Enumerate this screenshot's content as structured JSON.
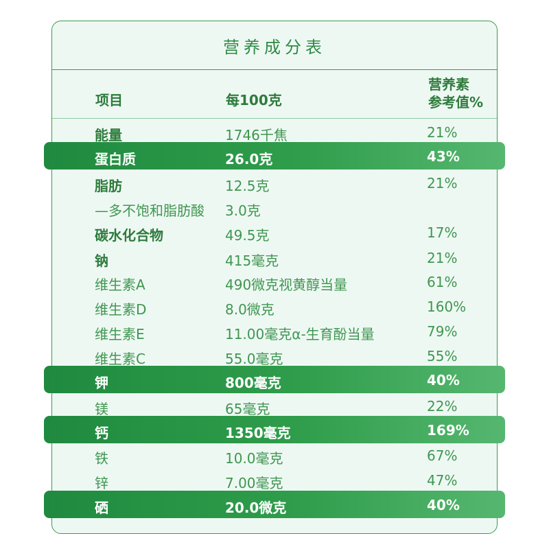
{
  "table": {
    "title": "营养成分表",
    "headers": {
      "item": "项目",
      "per100": "每100克",
      "nrv_line1": "营养素",
      "nrv_line2": "参考值%"
    },
    "rows": [
      {
        "name": "能量",
        "value": "1746千焦",
        "nrv": "21%"
      },
      {
        "name": "蛋白质",
        "value": "26.0克",
        "nrv": "43%"
      },
      {
        "name": "脂肪",
        "value": "12.5克",
        "nrv": "21%"
      },
      {
        "name": "—多不饱和脂肪酸",
        "value": "3.0克",
        "nrv": ""
      },
      {
        "name": "碳水化合物",
        "value": "49.5克",
        "nrv": "17%"
      },
      {
        "name": "钠",
        "value": "415毫克",
        "nrv": "21%"
      },
      {
        "name": "维生素A",
        "value": "490微克视黄醇当量",
        "nrv": "61%"
      },
      {
        "name": "维生素D",
        "value": "8.0微克",
        "nrv": "160%"
      },
      {
        "name": "维生素E",
        "value": "11.00毫克α-生育酚当量",
        "nrv": "79%"
      },
      {
        "name": "维生素C",
        "value": "55.0毫克",
        "nrv": "55%"
      },
      {
        "name": "钾",
        "value": "800毫克",
        "nrv": "40%"
      },
      {
        "name": "镁",
        "value": "65毫克",
        "nrv": "22%"
      },
      {
        "name": "钙",
        "value": "1350毫克",
        "nrv": "169%"
      },
      {
        "name": "铁",
        "value": "10.0毫克",
        "nrv": "67%"
      },
      {
        "name": "锌",
        "value": "7.00毫克",
        "nrv": "47%"
      },
      {
        "name": "硒",
        "value": "20.0微克",
        "nrv": "40%"
      }
    ]
  },
  "colors": {
    "primary_green": "#2e8a43",
    "highlight_start": "#1f8a3f",
    "highlight_end": "#56b770",
    "background": "#eef8f3"
  }
}
